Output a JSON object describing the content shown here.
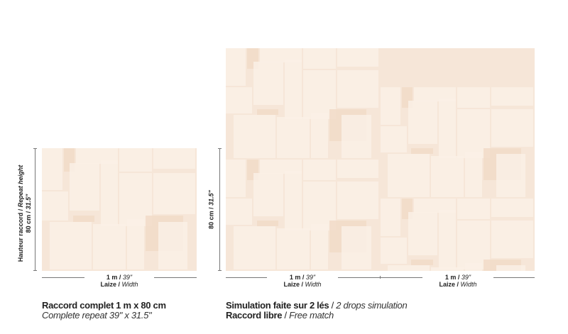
{
  "repeat_sample": {
    "height_label_fr": "Hauteur raccord",
    "height_label_en": "Repeat height",
    "height_value_metric": "80 cm",
    "height_value_imperial": "31.5\"",
    "width_value_metric": "1 m",
    "width_value_imperial": "39\"",
    "width_label_fr": "Laize",
    "width_label_en": "Width",
    "caption_fr": "Raccord complet 1 m x 80 cm",
    "caption_en": "Complete repeat 39\" x 31.5\""
  },
  "simulation": {
    "height_value_metric": "80 cm",
    "height_value_imperial": "31.5\"",
    "drops": [
      {
        "width_value_metric": "1 m",
        "width_value_imperial": "39\"",
        "width_label_fr": "Laize",
        "width_label_en": "Width"
      },
      {
        "width_value_metric": "1 m",
        "width_value_imperial": "39\"",
        "width_label_fr": "Laize",
        "width_label_en": "Width"
      }
    ],
    "caption_fr": "Simulation faite sur 2 lés",
    "caption_en": "2 drops simulation",
    "match_fr": "Raccord libre",
    "match_en": "Free match"
  },
  "colors": {
    "base": "#f6e6d8",
    "light": "#faf0e6",
    "dark": "#f1dac8"
  }
}
